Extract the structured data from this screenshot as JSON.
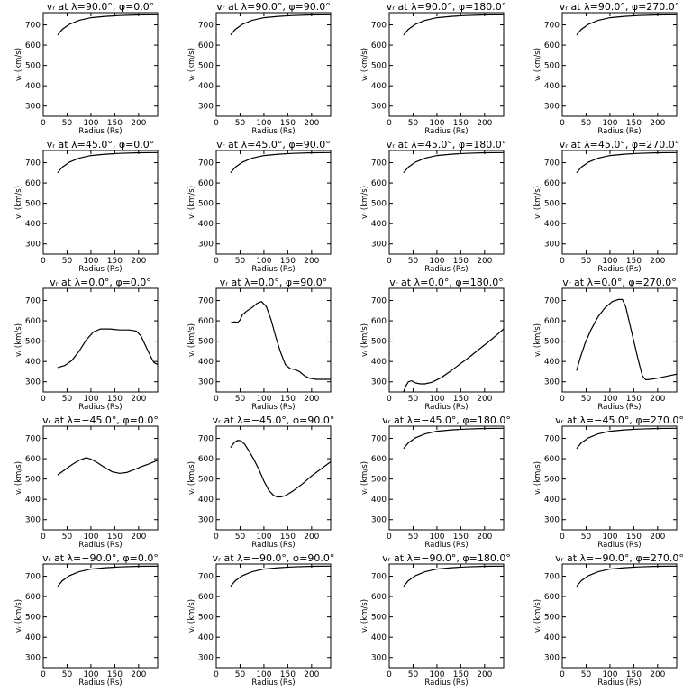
{
  "chart_data": {
    "type": "line",
    "layout": {
      "rows": 5,
      "cols": 4
    },
    "xlabel": "Radius (Rs)",
    "ylabel": "vᵣ (km/s)",
    "xlim": [
      0,
      240
    ],
    "ylim": [
      250,
      760
    ],
    "xticks": [
      0,
      50,
      100,
      150,
      200
    ],
    "yticks": [
      300,
      400,
      500,
      600,
      700
    ],
    "panels": [
      {
        "title": "vᵣ at λ=90.0°, φ=0.0°",
        "x": [
          30,
          40,
          55,
          75,
          100,
          130,
          160,
          200,
          240
        ],
        "y": [
          650,
          678,
          703,
          722,
          735,
          742,
          746,
          749,
          750
        ]
      },
      {
        "title": "vᵣ at λ=90.0°, φ=90.0°",
        "x": [
          30,
          40,
          55,
          75,
          100,
          130,
          160,
          200,
          240
        ],
        "y": [
          650,
          678,
          703,
          722,
          735,
          742,
          746,
          749,
          750
        ]
      },
      {
        "title": "vᵣ at λ=90.0°, φ=180.0°",
        "x": [
          30,
          40,
          55,
          75,
          100,
          130,
          160,
          200,
          240
        ],
        "y": [
          650,
          678,
          703,
          722,
          735,
          742,
          746,
          749,
          750
        ]
      },
      {
        "title": "vᵣ at λ=90.0°, φ=270.0°",
        "x": [
          30,
          40,
          55,
          75,
          100,
          130,
          160,
          200,
          240
        ],
        "y": [
          650,
          678,
          703,
          722,
          735,
          742,
          746,
          749,
          750
        ]
      },
      {
        "title": "vᵣ at λ=45.0°, φ=0.0°",
        "x": [
          30,
          40,
          55,
          75,
          100,
          130,
          160,
          200,
          240
        ],
        "y": [
          650,
          678,
          703,
          722,
          735,
          742,
          746,
          749,
          750
        ]
      },
      {
        "title": "vᵣ at λ=45.0°, φ=90.0°",
        "x": [
          30,
          40,
          55,
          75,
          100,
          130,
          160,
          200,
          240
        ],
        "y": [
          650,
          678,
          703,
          722,
          735,
          742,
          746,
          749,
          750
        ]
      },
      {
        "title": "vᵣ at λ=45.0°, φ=180.0°",
        "x": [
          30,
          40,
          55,
          75,
          100,
          130,
          160,
          200,
          240
        ],
        "y": [
          650,
          678,
          703,
          722,
          735,
          742,
          746,
          749,
          750
        ]
      },
      {
        "title": "vᵣ at λ=45.0°, φ=270.0°",
        "x": [
          30,
          40,
          55,
          75,
          100,
          130,
          160,
          200,
          240
        ],
        "y": [
          650,
          678,
          703,
          722,
          735,
          742,
          746,
          749,
          750
        ]
      },
      {
        "title": "vᵣ at λ=0.0°, φ=0.0°",
        "x": [
          30,
          45,
          60,
          75,
          90,
          105,
          120,
          140,
          160,
          180,
          195,
          205,
          215,
          225,
          232,
          240
        ],
        "y": [
          370,
          380,
          405,
          450,
          505,
          545,
          560,
          560,
          555,
          555,
          550,
          525,
          475,
          425,
          395,
          385
        ]
      },
      {
        "title": "vᵣ at λ=0.0°, φ=90.0°",
        "x": [
          30,
          38,
          45,
          50,
          55,
          65,
          75,
          85,
          95,
          105,
          115,
          125,
          135,
          145,
          155,
          165,
          175,
          185,
          195,
          210,
          225,
          240
        ],
        "y": [
          590,
          595,
          592,
          605,
          630,
          650,
          665,
          685,
          695,
          670,
          605,
          520,
          445,
          385,
          365,
          360,
          350,
          330,
          318,
          312,
          312,
          312
        ]
      },
      {
        "title": "vᵣ at λ=0.0°, φ=180.0°",
        "x": [
          30,
          35,
          40,
          47,
          55,
          65,
          75,
          90,
          110,
          130,
          150,
          170,
          190,
          210,
          225,
          240
        ],
        "y": [
          250,
          280,
          300,
          305,
          295,
          290,
          290,
          298,
          322,
          355,
          390,
          425,
          463,
          500,
          530,
          560
        ]
      },
      {
        "title": "vᵣ at λ=0.0°, φ=270.0°",
        "x": [
          30,
          38,
          48,
          60,
          75,
          90,
          105,
          118,
          126,
          133,
          140,
          150,
          160,
          168,
          175,
          185,
          200,
          220,
          240
        ],
        "y": [
          355,
          420,
          490,
          555,
          620,
          665,
          695,
          705,
          705,
          670,
          600,
          500,
          400,
          330,
          310,
          312,
          318,
          328,
          338
        ]
      },
      {
        "title": "vᵣ at λ=−45.0°, φ=0.0°",
        "x": [
          30,
          45,
          60,
          75,
          90,
          100,
          115,
          130,
          145,
          160,
          175,
          190,
          205,
          220,
          240
        ],
        "y": [
          520,
          545,
          570,
          592,
          605,
          598,
          578,
          555,
          535,
          528,
          532,
          545,
          560,
          573,
          592
        ]
      },
      {
        "title": "vᵣ at λ=−45.0°, φ=90.0°",
        "x": [
          30,
          38,
          45,
          52,
          60,
          68,
          78,
          90,
          100,
          110,
          120,
          128,
          135,
          145,
          160,
          180,
          200,
          220,
          240
        ],
        "y": [
          655,
          680,
          690,
          688,
          670,
          640,
          600,
          545,
          490,
          445,
          420,
          412,
          412,
          418,
          440,
          475,
          515,
          550,
          585
        ]
      },
      {
        "title": "vᵣ at λ=−45.0°, φ=180.0°",
        "x": [
          30,
          40,
          55,
          75,
          100,
          130,
          160,
          200,
          240
        ],
        "y": [
          650,
          678,
          703,
          722,
          735,
          742,
          746,
          749,
          750
        ]
      },
      {
        "title": "vᵣ at λ=−45.0°, φ=270.0°",
        "x": [
          30,
          40,
          55,
          75,
          100,
          130,
          160,
          200,
          240
        ],
        "y": [
          650,
          678,
          703,
          722,
          735,
          742,
          746,
          749,
          750
        ]
      },
      {
        "title": "vᵣ at λ=−90.0°, φ=0.0°",
        "x": [
          30,
          40,
          55,
          75,
          100,
          130,
          160,
          200,
          240
        ],
        "y": [
          650,
          678,
          703,
          722,
          735,
          742,
          746,
          749,
          750
        ]
      },
      {
        "title": "vᵣ at λ=−90.0°, φ=90.0°",
        "x": [
          30,
          40,
          55,
          75,
          100,
          130,
          160,
          200,
          240
        ],
        "y": [
          650,
          678,
          703,
          722,
          735,
          742,
          746,
          749,
          750
        ]
      },
      {
        "title": "vᵣ at λ=−90.0°, φ=180.0°",
        "x": [
          30,
          40,
          55,
          75,
          100,
          130,
          160,
          200,
          240
        ],
        "y": [
          650,
          678,
          703,
          722,
          735,
          742,
          746,
          749,
          750
        ]
      },
      {
        "title": "vᵣ at λ=−90.0°, φ=270.0°",
        "x": [
          30,
          40,
          55,
          75,
          100,
          130,
          160,
          200,
          240
        ],
        "y": [
          650,
          678,
          703,
          722,
          735,
          742,
          746,
          749,
          750
        ]
      }
    ]
  }
}
